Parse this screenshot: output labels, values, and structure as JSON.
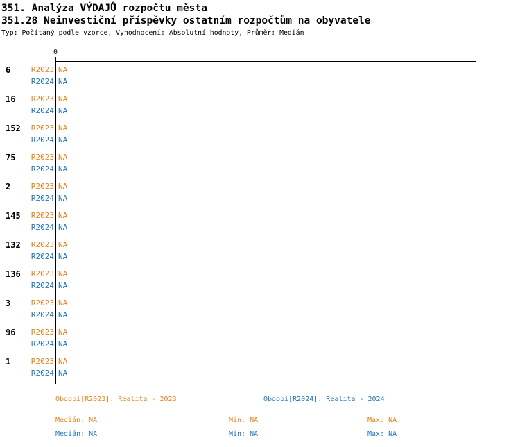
{
  "header": {
    "title_line1": "351. Analýza VÝDAJŮ rozpočtu města",
    "title_line2": "351.28 Neinvestiční příspěvky ostatním rozpočtům na obyvatele",
    "meta_line": "Typ: Počítaný podle vzorce, Vyhodnocení: Absolutní hodnoty, Průměr: Medián"
  },
  "colors": {
    "r2023": "#E8821E",
    "r2024": "#2277B8",
    "axis": "#000000",
    "background": "#FFFFFF"
  },
  "chart_data": {
    "type": "bar",
    "orientation": "horizontal",
    "title": "351.28 Neinvestiční příspěvky ostatním rozpočtům na obyvatele",
    "x_axis": {
      "zero_label": "0"
    },
    "categories": [
      "6",
      "16",
      "152",
      "75",
      "2",
      "145",
      "132",
      "136",
      "3",
      "96",
      "1"
    ],
    "series": [
      {
        "name": "R2023",
        "color": "#E8821E",
        "values": [
          "NA",
          "NA",
          "NA",
          "NA",
          "NA",
          "NA",
          "NA",
          "NA",
          "NA",
          "NA",
          "NA"
        ],
        "median": "NA",
        "min": "NA",
        "max": "NA"
      },
      {
        "name": "R2024",
        "color": "#2277B8",
        "values": [
          "NA",
          "NA",
          "NA",
          "NA",
          "NA",
          "NA",
          "NA",
          "NA",
          "NA",
          "NA",
          "NA"
        ],
        "median": "NA",
        "min": "NA",
        "max": "NA"
      }
    ],
    "legend_position": "bottom",
    "grid": false
  },
  "legend": {
    "r2023": {
      "period": "Období[R2023]: Realita - 2023",
      "median": "Medián: NA",
      "min": "Min: NA",
      "max": "Max: NA"
    },
    "r2024": {
      "period": "Období[R2024]: Realita - 2024",
      "median": "Medián: NA",
      "min": "Min: NA",
      "max": "Max: NA"
    }
  }
}
